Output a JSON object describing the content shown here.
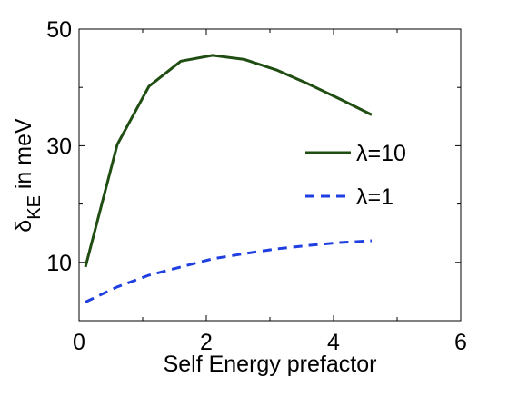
{
  "chart_data": {
    "type": "line",
    "title": "",
    "xlabel": "Self Energy prefactor",
    "ylabel": {
      "main": "δ",
      "subscript": "KE",
      "suffix": " in meV"
    },
    "xlim": [
      0,
      6
    ],
    "ylim": [
      0,
      50
    ],
    "xticks": [
      0,
      2,
      4,
      6
    ],
    "yticks": [
      10,
      30,
      50
    ],
    "xtick_labels": [
      "0",
      "2",
      "4",
      "6"
    ],
    "ytick_labels": [
      "10",
      "30",
      "50"
    ],
    "grid": false,
    "legend_position": "right",
    "series": [
      {
        "name": "λ=10",
        "color": "#1f4d12",
        "style": "solid",
        "x": [
          0.1,
          0.6,
          1.1,
          1.6,
          2.1,
          2.6,
          3.1,
          3.6,
          4.1,
          4.6
        ],
        "y": [
          9.2,
          30.2,
          40.2,
          44.5,
          45.5,
          44.8,
          43.0,
          40.6,
          38.0,
          35.3
        ]
      },
      {
        "name": "λ=1",
        "color": "#1f3fe0",
        "style": "dashed",
        "x": [
          0.1,
          0.6,
          1.1,
          1.6,
          2.1,
          2.6,
          3.1,
          3.6,
          4.1,
          4.6
        ],
        "y": [
          3.2,
          5.8,
          7.8,
          9.2,
          10.6,
          11.5,
          12.3,
          12.9,
          13.4,
          13.7
        ]
      }
    ]
  }
}
